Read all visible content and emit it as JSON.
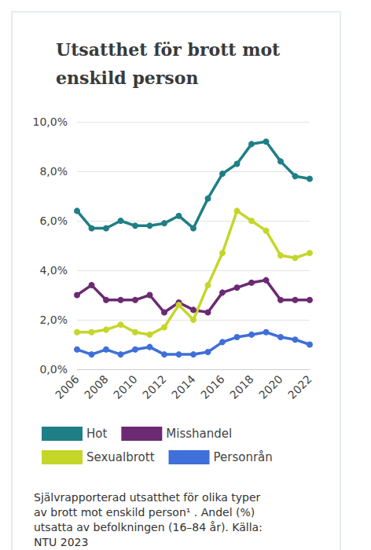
{
  "chart_data": {
    "type": "line",
    "title": "Utsatthet för brott mot enskild person",
    "caption": "Självrapporterad utsatthet för olika typer av brott mot enskild person¹ . Andel (%) utsatta av befolkningen (16–84 år). Källa: NTU 2023",
    "x": [
      2006,
      2007,
      2008,
      2009,
      2010,
      2011,
      2012,
      2013,
      2014,
      2015,
      2016,
      2017,
      2018,
      2019,
      2020,
      2021,
      2022
    ],
    "xlim": [
      2006,
      2022
    ],
    "xticks": [
      2006,
      2008,
      2010,
      2012,
      2014,
      2016,
      2018,
      2020,
      2022
    ],
    "ylim": [
      0,
      10
    ],
    "yticks": [
      {
        "value": 0,
        "label": "0,0%"
      },
      {
        "value": 2,
        "label": "2,0%"
      },
      {
        "value": 4,
        "label": "4,0%"
      },
      {
        "value": 6,
        "label": "6,0%"
      },
      {
        "value": 8,
        "label": "8,0%"
      },
      {
        "value": 10,
        "label": "10,0%"
      }
    ],
    "grid": true,
    "legend": "bottom",
    "marker": "circle",
    "series": [
      {
        "name": "Hot",
        "color": "#1f7f86",
        "values": [
          6.4,
          5.7,
          5.7,
          6.0,
          5.8,
          5.8,
          5.9,
          6.2,
          5.7,
          6.9,
          7.9,
          8.3,
          9.1,
          9.2,
          8.4,
          7.8,
          7.7
        ]
      },
      {
        "name": "Misshandel",
        "color": "#6b2a72",
        "values": [
          3.0,
          3.4,
          2.8,
          2.8,
          2.8,
          3.0,
          2.3,
          2.7,
          2.4,
          2.3,
          3.1,
          3.3,
          3.5,
          3.6,
          2.8,
          2.8,
          2.8
        ]
      },
      {
        "name": "Sexualbrott",
        "color": "#c5d62a",
        "values": [
          1.5,
          1.5,
          1.6,
          1.8,
          1.5,
          1.4,
          1.7,
          2.6,
          2.0,
          3.4,
          4.7,
          6.4,
          6.0,
          5.6,
          4.6,
          4.5,
          4.7
        ]
      },
      {
        "name": "Personrån",
        "color": "#3f6fd8",
        "values": [
          0.8,
          0.6,
          0.8,
          0.6,
          0.8,
          0.9,
          0.6,
          0.6,
          0.6,
          0.7,
          1.1,
          1.3,
          1.4,
          1.5,
          1.3,
          1.2,
          1.0
        ]
      }
    ]
  }
}
